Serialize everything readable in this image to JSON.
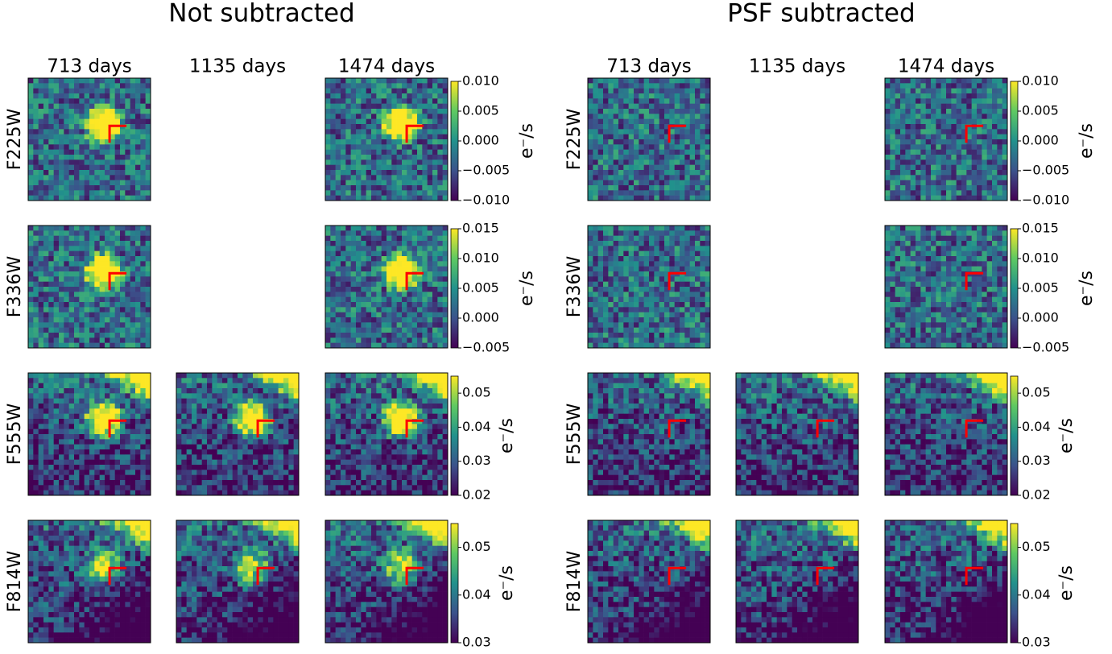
{
  "chart_data": {
    "type": "image_grid",
    "groups": [
      {
        "title": "Not subtracted",
        "subtracted": false
      },
      {
        "title": "PSF subtracted",
        "subtracted": true
      }
    ],
    "columns": [
      "713 days",
      "1135 days",
      "1474 days"
    ],
    "colorbar_label": "e⁻/s",
    "colormap": "viridis",
    "marker_color": "#ff0000",
    "rows": [
      {
        "label": "F225W",
        "panels": [
          true,
          false,
          true
        ],
        "clim": [
          -0.01,
          0.01
        ],
        "cticks": [
          {
            "value": 0.01,
            "label": "0.010"
          },
          {
            "value": 0.005,
            "label": "0.005"
          },
          {
            "value": 0,
            "label": "0.000"
          },
          {
            "value": -0.005,
            "label": "−0.005"
          },
          {
            "value": -0.01,
            "label": "−0.010"
          }
        ]
      },
      {
        "label": "F336W",
        "panels": [
          true,
          false,
          true
        ],
        "clim": [
          -0.005,
          0.015
        ],
        "cticks": [
          {
            "value": 0.015,
            "label": "0.015"
          },
          {
            "value": 0.01,
            "label": "0.010"
          },
          {
            "value": 0.005,
            "label": "0.005"
          },
          {
            "value": 0,
            "label": "0.000"
          },
          {
            "value": -0.005,
            "label": "−0.005"
          }
        ]
      },
      {
        "label": "F555W",
        "panels": [
          true,
          true,
          true
        ],
        "clim": [
          0.02,
          0.055
        ],
        "cticks": [
          0.05,
          0.04,
          0.03,
          0.02
        ]
      },
      {
        "label": "F814W",
        "panels": [
          true,
          true,
          true
        ],
        "clim": [
          0.03,
          0.055
        ],
        "cticks": [
          0.05,
          0.04,
          0.03
        ]
      }
    ]
  }
}
